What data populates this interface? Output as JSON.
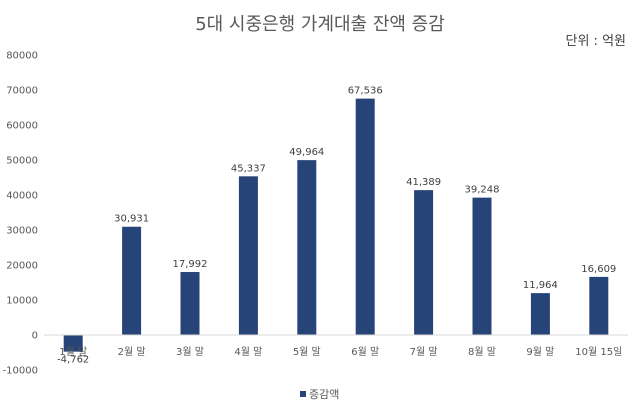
{
  "chart_data": {
    "type": "bar",
    "title": "5대 시중은행 가계대출 잔액 증감",
    "unit_label": "단위 : 억원",
    "categories": [
      "1월 말",
      "2월 말",
      "3월 말",
      "4월 말",
      "5월 말",
      "6월 말",
      "7월 말",
      "8월 말",
      "9월 말",
      "10월 15일"
    ],
    "series": [
      {
        "name": "증감액",
        "color": "#264478",
        "values": [
          -4762,
          30931,
          17992,
          45337,
          49964,
          67536,
          41389,
          39248,
          11964,
          16609
        ],
        "labels": [
          "-4,762",
          "30,931",
          "17,992",
          "45,337",
          "49,964",
          "67,536",
          "41,389",
          "39,248",
          "11,964",
          "16,609"
        ]
      }
    ],
    "ylim": [
      -10000,
      80000
    ],
    "yticks": [
      -10000,
      0,
      10000,
      20000,
      30000,
      40000,
      50000,
      60000,
      70000,
      80000
    ],
    "grid": false,
    "legend_position": "bottom"
  }
}
